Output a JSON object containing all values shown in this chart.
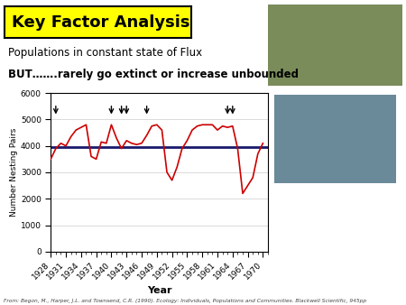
{
  "title": "Key Factor Analysis",
  "text_line1": "Populations in constant state of Flux",
  "text_line2": "BUT…….rarely go extinct or increase unbounded",
  "citation": "From: Begon, M., Harper, J.L. and Townsend, C.R. (1990). Ecology: Individuals, Populations and Communities. Blackwell Scientific, 945pp",
  "xlabel": "Year",
  "ylabel": "Number Nesting Pairs",
  "ylim": [
    0,
    6000
  ],
  "xlim": [
    1928,
    1971
  ],
  "mean_line": 3950,
  "mean_line_color": "#1a1a6e",
  "data_color": "#cc0000",
  "years": [
    1928,
    1929,
    1930,
    1931,
    1932,
    1933,
    1934,
    1935,
    1936,
    1937,
    1938,
    1939,
    1940,
    1941,
    1942,
    1943,
    1944,
    1945,
    1946,
    1947,
    1948,
    1949,
    1950,
    1951,
    1952,
    1953,
    1954,
    1955,
    1956,
    1957,
    1958,
    1959,
    1960,
    1961,
    1962,
    1963,
    1964,
    1965,
    1966,
    1967,
    1968,
    1969,
    1970
  ],
  "values": [
    3500,
    3900,
    4100,
    4000,
    4350,
    4600,
    4700,
    4800,
    3600,
    3500,
    4150,
    4100,
    4800,
    4300,
    3900,
    4200,
    4100,
    4050,
    4100,
    4400,
    4750,
    4800,
    4600,
    3000,
    2700,
    3200,
    3900,
    4200,
    4600,
    4750,
    4800,
    4800,
    4800,
    4600,
    4750,
    4700,
    4750,
    3900,
    2200,
    2500,
    2800,
    3700,
    4100
  ],
  "arrow_years": [
    1929,
    1940,
    1942,
    1943,
    1947,
    1963,
    1964
  ],
  "xtick_years": [
    1928,
    1931,
    1934,
    1937,
    1940,
    1943,
    1946,
    1949,
    1952,
    1955,
    1958,
    1961,
    1964,
    1967,
    1970
  ],
  "background_color": "#ffffff",
  "title_bg_color": "#ffff00",
  "title_text_color": "#000000",
  "title_fontsize": 13,
  "axis_fontsize": 6.5,
  "label_fontsize": 8
}
